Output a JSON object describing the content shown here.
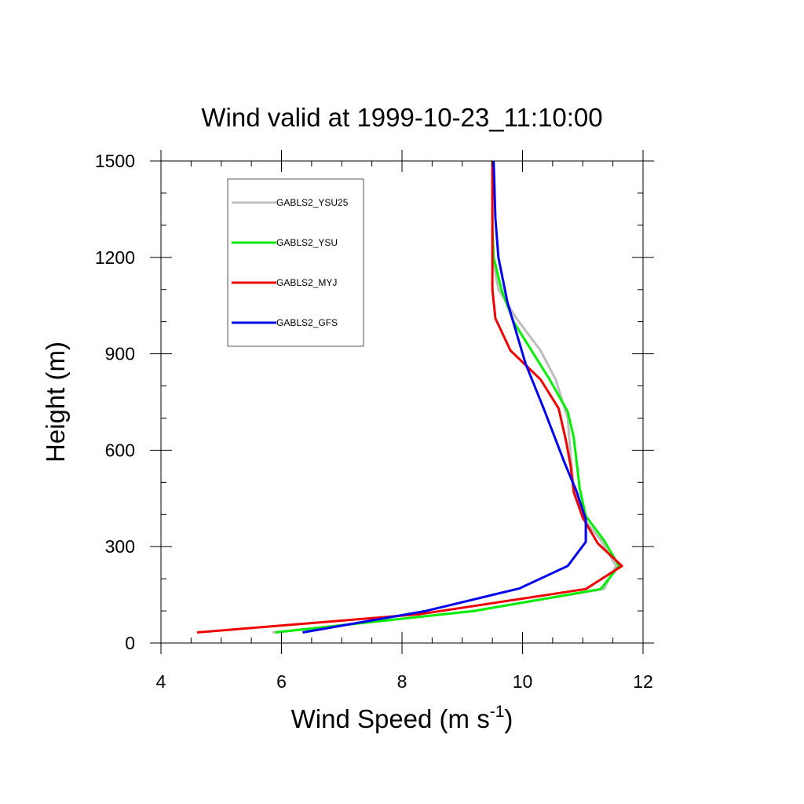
{
  "chart_data": {
    "type": "line",
    "title": "Wind valid at 1999-10-23_11:10:00",
    "xlabel": "Wind Speed (m s",
    "xlabel_superscript": "-1",
    "xlabel_suffix": ")",
    "ylabel": "Height (m)",
    "xlim": [
      4,
      12
    ],
    "ylim": [
      0,
      1500
    ],
    "x_ticks": [
      4,
      6,
      8,
      10,
      12
    ],
    "y_ticks": [
      0,
      300,
      600,
      900,
      1200,
      1500
    ],
    "x_tick_labels": [
      "4",
      "6",
      "8",
      "10",
      "12"
    ],
    "y_tick_labels": [
      "0",
      "300",
      "600",
      "900",
      "1200",
      "1500"
    ],
    "grid": false,
    "legend_position": "top-left",
    "series": [
      {
        "name": "GABLS2_YSU25",
        "color": "#bdbdbd",
        "points": [
          [
            5.85,
            33
          ],
          [
            9.2,
            100
          ],
          [
            11.35,
            168
          ],
          [
            11.55,
            240
          ],
          [
            11.3,
            320
          ],
          [
            11.0,
            390
          ],
          [
            10.85,
            480
          ],
          [
            10.8,
            580
          ],
          [
            10.75,
            700
          ],
          [
            10.55,
            820
          ],
          [
            10.3,
            910
          ],
          [
            9.9,
            1010
          ],
          [
            9.6,
            1100
          ],
          [
            9.5,
            1200
          ],
          [
            9.5,
            1300
          ],
          [
            9.5,
            1400
          ],
          [
            9.5,
            1500
          ]
        ]
      },
      {
        "name": "GABLS2_YSU",
        "color": "#00ee00",
        "points": [
          [
            5.9,
            33
          ],
          [
            9.2,
            100
          ],
          [
            11.3,
            168
          ],
          [
            11.6,
            240
          ],
          [
            11.35,
            320
          ],
          [
            11.05,
            395
          ],
          [
            10.95,
            480
          ],
          [
            10.9,
            560
          ],
          [
            10.85,
            640
          ],
          [
            10.75,
            720
          ],
          [
            10.45,
            820
          ],
          [
            10.15,
            910
          ],
          [
            9.85,
            1000
          ],
          [
            9.65,
            1100
          ],
          [
            9.52,
            1200
          ],
          [
            9.5,
            1300
          ],
          [
            9.5,
            1500
          ]
        ]
      },
      {
        "name": "GABLS2_MYJ",
        "color": "#ee0000",
        "points": [
          [
            4.6,
            33
          ],
          [
            8.3,
            90
          ],
          [
            11.05,
            168
          ],
          [
            11.65,
            240
          ],
          [
            11.25,
            310
          ],
          [
            11.0,
            390
          ],
          [
            10.85,
            470
          ],
          [
            10.8,
            550
          ],
          [
            10.72,
            630
          ],
          [
            10.6,
            730
          ],
          [
            10.3,
            820
          ],
          [
            9.8,
            910
          ],
          [
            9.55,
            1010
          ],
          [
            9.5,
            1100
          ],
          [
            9.5,
            1200
          ],
          [
            9.5,
            1300
          ],
          [
            9.5,
            1500
          ]
        ]
      },
      {
        "name": "GABLS2_GFS",
        "color": "#0000ee",
        "points": [
          [
            6.35,
            33
          ],
          [
            8.4,
            100
          ],
          [
            9.95,
            170
          ],
          [
            10.75,
            240
          ],
          [
            11.05,
            315
          ],
          [
            11.05,
            385
          ],
          [
            10.9,
            470
          ],
          [
            10.7,
            560
          ],
          [
            10.35,
            730
          ],
          [
            10.05,
            870
          ],
          [
            9.75,
            1060
          ],
          [
            9.6,
            1200
          ],
          [
            9.55,
            1320
          ],
          [
            9.52,
            1500
          ]
        ]
      }
    ]
  }
}
